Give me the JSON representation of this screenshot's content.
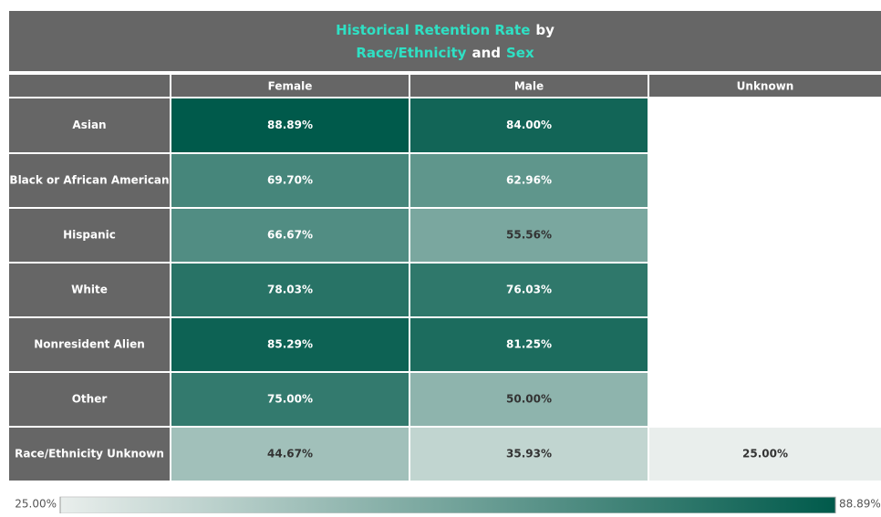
{
  "chart_data": {
    "type": "heatmap",
    "title": [
      [
        {
          "text": "Historical Retention Rate",
          "color": "#2fe0c4"
        },
        {
          "text": "by",
          "color": "#ffffff"
        }
      ],
      [
        {
          "text": "Race/Ethnicity",
          "color": "#2fe0c4"
        },
        {
          "text": "and",
          "color": "#ffffff"
        },
        {
          "text": "Sex",
          "color": "#2fe0c4"
        }
      ]
    ],
    "x_categories": [
      "Female",
      "Male",
      "Unknown"
    ],
    "y_categories": [
      "Asian",
      "Black or African American",
      "Hispanic",
      "White",
      "Nonresident Alien",
      "Other",
      "Race/Ethnicity Unknown"
    ],
    "values": [
      [
        88.89,
        84.0,
        null
      ],
      [
        69.7,
        62.96,
        null
      ],
      [
        66.67,
        55.56,
        null
      ],
      [
        78.03,
        76.03,
        null
      ],
      [
        85.29,
        81.25,
        null
      ],
      [
        75.0,
        50.0,
        null
      ],
      [
        44.67,
        35.93,
        25.0
      ]
    ],
    "value_labels": [
      [
        "88.89%",
        "84.00%",
        null
      ],
      [
        "69.70%",
        "62.96%",
        null
      ],
      [
        "66.67%",
        "55.56%",
        null
      ],
      [
        "78.03%",
        "76.03%",
        null
      ],
      [
        "85.29%",
        "81.25%",
        null
      ],
      [
        "75.00%",
        "50.00%",
        null
      ],
      [
        "44.67%",
        "35.93%",
        "25.00%"
      ]
    ],
    "clim": [
      25,
      88.89
    ],
    "cticks": [
      {
        "value": 25,
        "label": "25.00%"
      },
      {
        "value": 88.89,
        "label": "88.89%"
      }
    ],
    "colors": [
      "#e9eeec",
      "#005a4b"
    ]
  }
}
